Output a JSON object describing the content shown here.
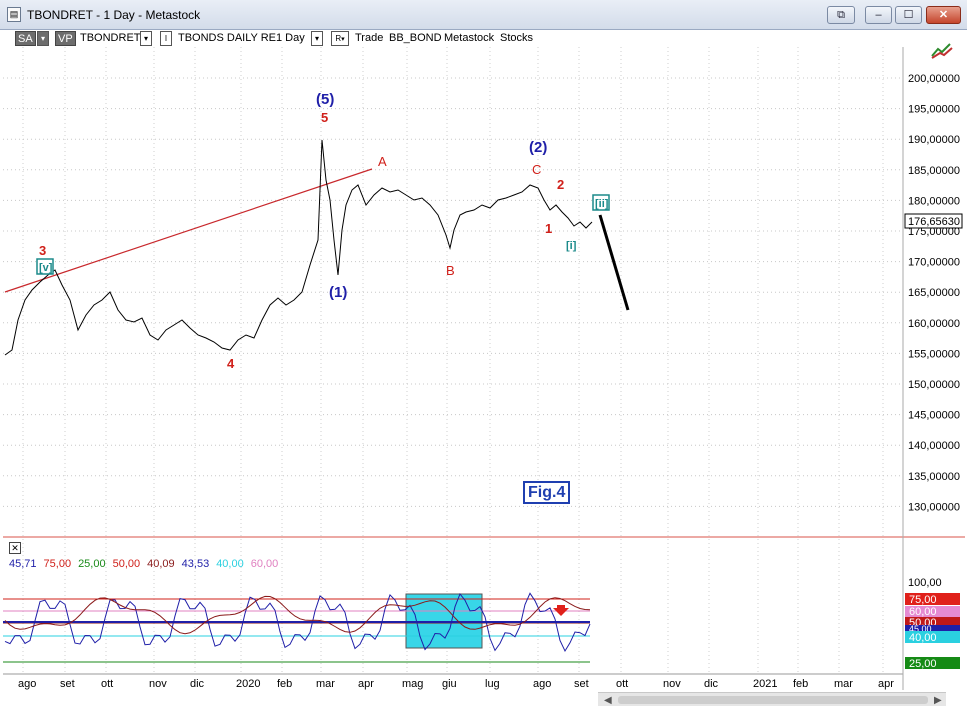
{
  "window": {
    "title": "TBONDRET - 1 Day - Metastock",
    "icon": "chart-document-icon",
    "buttons": {
      "minimize": "–",
      "maximize": "☐",
      "close": "✕",
      "restore_child": "⧉"
    }
  },
  "toolbar": {
    "sa": "SA",
    "vp": "VP",
    "symbol": "TBONDRET",
    "security": "TBONDS DAILY RE",
    "interval": "1 Day",
    "template": "Trade",
    "expert1": "BB_BOND",
    "expert2": "Metastock",
    "expert3": "Stocks",
    "dropdown_glyph": "▾",
    "i_glyph": "I",
    "r_glyph": "R"
  },
  "colors": {
    "wave_blue": "#1f1fa8",
    "wave_red": "#d0201a",
    "wave_teal": "#1b8a8a",
    "trendline": "#c8282c",
    "price": "#000000",
    "highlight_box": "#38d6e8"
  },
  "price_axis": {
    "ticks": [
      "200,00000",
      "195,00000",
      "190,00000",
      "185,00000",
      "180,00000",
      "175,00000",
      "170,00000",
      "165,00000",
      "160,00000",
      "155,00000",
      "150,00000",
      "145,00000",
      "140,00000",
      "135,00000",
      "130,00000"
    ],
    "last_price": "176,65630"
  },
  "wave_labels": {
    "w3": "3",
    "wv": "[v]",
    "w4": "4",
    "w5": "5",
    "w5b": "(5)",
    "w1b": "(1)",
    "wA": "A",
    "wB": "B",
    "wC": "C",
    "w2b": "(2)",
    "w1": "1",
    "w2": "2",
    "wi": "[i]",
    "wii": "[ii]"
  },
  "figure_label": "Fig.4",
  "indicator": {
    "close_glyph": "✕",
    "values": [
      "45,71",
      "75,00",
      "25,00",
      "50,00",
      "40,09",
      "43,53",
      "40,00",
      "60,00"
    ],
    "value_colors": [
      "#1f1fa8",
      "#d0201a",
      "#1a8a1a",
      "#d0201a",
      "#8a1a1a",
      "#1f1fa8",
      "#2ad0e0",
      "#e080c0"
    ],
    "axis_top": "100,00",
    "tags": {
      "t75": "75,00",
      "t60": "60,00",
      "t50": "50,00",
      "t45": "45,00",
      "t40": "40,00",
      "t25": "25,00"
    }
  },
  "date_axis": [
    "ago",
    "set",
    "ott",
    "nov",
    "dic",
    "2020",
    "feb",
    "mar",
    "apr",
    "mag",
    "giu",
    "lug",
    "ago",
    "set",
    "ott",
    "nov",
    "dic",
    "2021",
    "feb",
    "mar",
    "apr"
  ],
  "scroll": {
    "left": "◀",
    "right": "▶"
  }
}
